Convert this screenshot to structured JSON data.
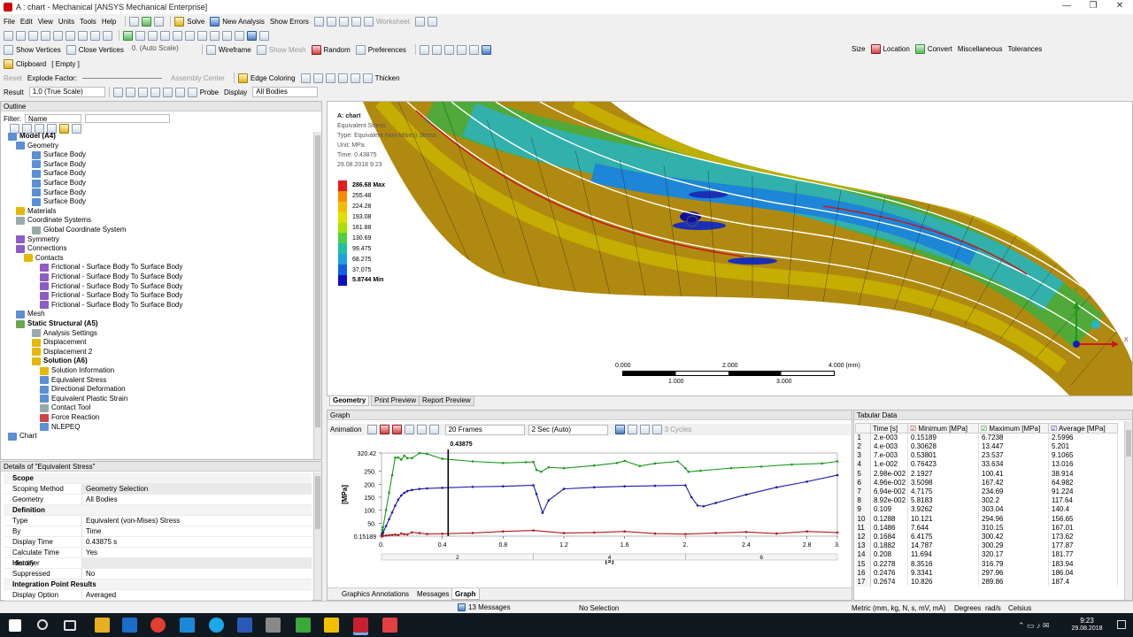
{
  "window": {
    "title": "A : chart - Mechanical [ANSYS Mechanical Enterprise]",
    "controls": [
      "—",
      "❐",
      "✕"
    ]
  },
  "menubar": {
    "items": [
      "File",
      "Edit",
      "View",
      "Units",
      "Tools",
      "Help"
    ],
    "solve": "Solve",
    "new_analysis": "New Analysis",
    "show_errors": "Show Errors",
    "worksheet": "Worksheet"
  },
  "toolbar3": {
    "show_vertices": "Show Vertices",
    "close_vertices": "Close Vertices",
    "auto_scale": "0. (Auto Scale)",
    "wireframe": "Wireframe",
    "show_mesh": "Show Mesh",
    "random": "Random",
    "preferences": "Preferences",
    "size": "Size",
    "location": "Location",
    "convert": "Convert",
    "misc": "Miscellaneous",
    "tolerances": "Tolerances"
  },
  "toolbar4": {
    "clipboard": "Clipboard",
    "empty": "[ Empty ]"
  },
  "toolbar5": {
    "reset": "Reset",
    "explode_factor": "Explode Factor:",
    "assembly_center": "Assembly Center",
    "edge_coloring": "Edge Coloring",
    "thicken": "Thicken"
  },
  "toolbar6": {
    "result": "Result",
    "scale": "1.0 (True Scale)",
    "probe": "Probe",
    "display": "Display",
    "all_bodies": "All Bodies"
  },
  "outline": {
    "title": "Outline",
    "filter_label": "Filter:",
    "filter_value": "Name",
    "tree": [
      {
        "label": "Model (A4)",
        "bold": true,
        "icon": "model-icon"
      },
      {
        "label": "Geometry",
        "icon": "geometry-icon"
      },
      {
        "label": "Surface Body",
        "icon": "surface-body-icon"
      },
      {
        "label": "Surface Body",
        "icon": "surface-body-icon"
      },
      {
        "label": "Surface Body",
        "icon": "surface-body-icon"
      },
      {
        "label": "Surface Body",
        "icon": "surface-body-icon"
      },
      {
        "label": "Surface Body",
        "icon": "surface-body-icon"
      },
      {
        "label": "Surface Body",
        "icon": "surface-body-icon"
      },
      {
        "label": "Materials",
        "icon": "materials-icon"
      },
      {
        "label": "Coordinate Systems",
        "icon": "coordinate-icon"
      },
      {
        "label": "Global Coordinate System",
        "icon": "coordinate-icon"
      },
      {
        "label": "Symmetry",
        "icon": "symmetry-icon"
      },
      {
        "label": "Connections",
        "icon": "connections-icon"
      },
      {
        "label": "Contacts",
        "icon": "contacts-icon"
      },
      {
        "label": "Frictional - Surface Body To Surface Body",
        "icon": "contact-icon"
      },
      {
        "label": "Frictional - Surface Body To Surface Body",
        "icon": "contact-icon"
      },
      {
        "label": "Frictional - Surface Body To Surface Body",
        "icon": "contact-icon"
      },
      {
        "label": "Frictional - Surface Body To Surface Body",
        "icon": "contact-icon"
      },
      {
        "label": "Frictional - Surface Body To Surface Body",
        "icon": "contact-icon"
      },
      {
        "label": "Mesh",
        "icon": "mesh-icon"
      },
      {
        "label": "Static Structural (A5)",
        "bold": true,
        "icon": "static-structural-icon"
      },
      {
        "label": "Analysis Settings",
        "icon": "analysis-settings-icon"
      },
      {
        "label": "Displacement",
        "icon": "displacement-icon"
      },
      {
        "label": "Displacement 2",
        "icon": "displacement-icon"
      },
      {
        "label": "Solution (A6)",
        "bold": true,
        "icon": "solution-icon"
      },
      {
        "label": "Solution Information",
        "icon": "solution-info-icon"
      },
      {
        "label": "Equivalent Stress",
        "icon": "result-icon"
      },
      {
        "label": "Directional Deformation",
        "icon": "result-icon"
      },
      {
        "label": "Equivalent Plastic Strain",
        "icon": "result-icon"
      },
      {
        "label": "Contact Tool",
        "icon": "contact-tool-icon"
      },
      {
        "label": "Force Reaction",
        "icon": "probe-icon"
      },
      {
        "label": "NLEPEQ",
        "icon": "result-icon"
      },
      {
        "label": "Chart",
        "icon": "chart-icon"
      }
    ]
  },
  "details": {
    "title": "Details of \"Equivalent Stress\"",
    "rows": [
      {
        "section": "Scope"
      },
      {
        "k": "Scoping Method",
        "v": "Geometry Selection",
        "gray": true
      },
      {
        "k": "Geometry",
        "v": "All Bodies"
      },
      {
        "section": "Definition"
      },
      {
        "k": "Type",
        "v": "Equivalent (von-Mises) Stress"
      },
      {
        "k": "By",
        "v": "Time"
      },
      {
        "k": "Display Time",
        "v": "0.43875 s"
      },
      {
        "k": "Calculate Time History",
        "v": "Yes"
      },
      {
        "k": "Identifier",
        "v": "",
        "gray": true
      },
      {
        "k": "Suppressed",
        "v": "No"
      },
      {
        "section": "Integration Point Results"
      },
      {
        "k": "Display Option",
        "v": "Averaged"
      }
    ]
  },
  "viewport": {
    "label": {
      "name": "A: chart",
      "result": "Equivalent Stress",
      "type": "Type: Equivalent (von-Mises) Stress",
      "unit": "Unit: MPa",
      "time": "Time: 0.43875",
      "date": "29.08.2018 9:23"
    },
    "legend": [
      {
        "v": "286.68 Max",
        "c": "#e51c1c",
        "bold": true
      },
      {
        "v": "255.48",
        "c": "#ff8c00"
      },
      {
        "v": "224.28",
        "c": "#f0c000"
      },
      {
        "v": "193.08",
        "c": "#e0e000"
      },
      {
        "v": "161.88",
        "c": "#a8e000"
      },
      {
        "v": "130.69",
        "c": "#50d040"
      },
      {
        "v": "99.475",
        "c": "#20c0a0"
      },
      {
        "v": "68.275",
        "c": "#20a0e0"
      },
      {
        "v": "37.075",
        "c": "#1060e0"
      },
      {
        "v": "5.8744 Min",
        "c": "#1010c0",
        "bold": true
      }
    ],
    "scalebar": {
      "top": [
        "0.000",
        "2.000",
        "4.000 (mm)"
      ],
      "bottom": [
        "1.000",
        "3.000"
      ]
    },
    "triad": {
      "x": "X",
      "y": "Y"
    },
    "tabs": [
      "Geometry",
      "Print Preview",
      "Report Preview"
    ]
  },
  "graph": {
    "title": "Graph",
    "animation": "Animation",
    "frames": "20 Frames",
    "speed": "2 Sec (Auto)",
    "cycles": "3 Cycles",
    "marker_label": "0.43875",
    "tabs": [
      "Graphics Annotations",
      "Messages",
      "Graph"
    ]
  },
  "chart_data": {
    "type": "line",
    "xlabel": "[s]",
    "ylabel": "[MPa]",
    "xlim": [
      0,
      3
    ],
    "ylim": [
      0,
      320.42
    ],
    "x_ticks": [
      "0.",
      "0.4",
      "0.8",
      "1.2",
      "1.6",
      "2.",
      "2.4",
      "2.8",
      "3."
    ],
    "y_ticks": [
      "320.42",
      "250.",
      "200.",
      "150.",
      "100.",
      "50.",
      "0.15189"
    ],
    "step_ticks": [
      "2",
      "4",
      "6"
    ],
    "marker_time": 0.43875,
    "series": [
      {
        "name": "Maximum [MPa]",
        "color": "#1a9a1a",
        "x": [
          0.002,
          0.004,
          0.007,
          0.01,
          0.03,
          0.05,
          0.07,
          0.09,
          0.11,
          0.13,
          0.15,
          0.17,
          0.2,
          0.25,
          0.3,
          0.4,
          0.6,
          0.8,
          0.95,
          1.0,
          1.02,
          1.05,
          1.1,
          1.2,
          1.4,
          1.55,
          1.6,
          1.7,
          1.8,
          1.95,
          2.0,
          2.02,
          2.1,
          2.3,
          2.5,
          2.7,
          2.9,
          3.0
        ],
        "y": [
          6.72,
          13.45,
          23.54,
          33.63,
          100.41,
          167.42,
          234.69,
          302.2,
          303.04,
          294.96,
          310.15,
          300.42,
          300.29,
          320.17,
          316.79,
          297.96,
          288,
          282,
          285,
          286,
          255,
          248,
          265,
          262,
          272,
          282,
          290,
          270,
          280,
          288,
          262,
          248,
          252,
          262,
          268,
          276,
          280,
          288
        ]
      },
      {
        "name": "Average [MPa]",
        "color": "#1a1aa8",
        "x": [
          0.002,
          0.004,
          0.007,
          0.01,
          0.03,
          0.05,
          0.07,
          0.09,
          0.11,
          0.13,
          0.15,
          0.17,
          0.2,
          0.25,
          0.3,
          0.4,
          0.6,
          0.8,
          1.0,
          1.02,
          1.06,
          1.1,
          1.2,
          1.4,
          1.6,
          1.8,
          2.0,
          2.04,
          2.08,
          2.12,
          2.2,
          2.4,
          2.6,
          2.8,
          3.0
        ],
        "y": [
          2.6,
          5.2,
          9.11,
          13.02,
          38.91,
          64.98,
          91.22,
          117.64,
          140.4,
          156.65,
          167.01,
          173.62,
          177.87,
          181.77,
          183.94,
          186.04,
          190,
          192,
          196,
          162,
          90,
          138,
          182,
          188,
          192,
          194,
          196,
          150,
          118,
          115,
          128,
          160,
          188,
          210,
          235
        ]
      },
      {
        "name": "Minimum [MPa]",
        "color": "#b01a1a",
        "x": [
          0.002,
          0.004,
          0.007,
          0.01,
          0.03,
          0.05,
          0.07,
          0.09,
          0.11,
          0.13,
          0.15,
          0.17,
          0.2,
          0.25,
          0.3,
          0.4,
          0.6,
          0.8,
          1.0,
          1.2,
          1.4,
          1.6,
          1.8,
          2.0,
          2.2,
          2.4,
          2.6,
          2.8,
          3.0
        ],
        "y": [
          0.15,
          0.31,
          0.54,
          0.76,
          2.19,
          3.51,
          4.72,
          5.82,
          3.93,
          10.12,
          7.64,
          6.42,
          14.79,
          11.69,
          8.35,
          9.33,
          12,
          18,
          22,
          12,
          14,
          18,
          10,
          8,
          12,
          16,
          10,
          18,
          14
        ]
      }
    ]
  },
  "tabular": {
    "title": "Tabular Data",
    "columns": [
      "Time [s]",
      "Minimum [MPa]",
      "Maximum [MPa]",
      "Average [MPa]"
    ],
    "rows": [
      [
        "1",
        "2.e-003",
        "0.15189",
        "6.7238",
        "2.5996"
      ],
      [
        "2",
        "4.e-003",
        "0.30628",
        "13.447",
        "5.201"
      ],
      [
        "3",
        "7.e-003",
        "0.53801",
        "23.537",
        "9.1065"
      ],
      [
        "4",
        "1.e-002",
        "0.76423",
        "33.634",
        "13.016"
      ],
      [
        "5",
        "2.98e-002",
        "2.1927",
        "100.41",
        "38.914"
      ],
      [
        "6",
        "4.96e-002",
        "3.5098",
        "167.42",
        "64.982"
      ],
      [
        "7",
        "6.94e-002",
        "4.7175",
        "234.69",
        "91.224"
      ],
      [
        "8",
        "8.92e-002",
        "5.8183",
        "302.2",
        "117.64"
      ],
      [
        "9",
        "0.109",
        "3.9262",
        "303.04",
        "140.4"
      ],
      [
        "10",
        "0.1288",
        "10.121",
        "294.96",
        "156.65"
      ],
      [
        "11",
        "0.1486",
        "7.644",
        "310.15",
        "167.01"
      ],
      [
        "12",
        "0.1684",
        "6.4175",
        "300.42",
        "173.62"
      ],
      [
        "13",
        "0.1882",
        "14.787",
        "300.29",
        "177.87"
      ],
      [
        "14",
        "0.208",
        "11.694",
        "320.17",
        "181.77"
      ],
      [
        "15",
        "0.2278",
        "8.3516",
        "316.79",
        "183.94"
      ],
      [
        "16",
        "0.2476",
        "9.3341",
        "297.96",
        "186.04"
      ],
      [
        "17",
        "0.2674",
        "10.826",
        "289.86",
        "187.4"
      ]
    ]
  },
  "statusbar": {
    "messages": "13 Messages",
    "selection": "No Selection",
    "units": "Metric (mm, kg, N, s, mV, mA)",
    "degrees": "Degrees",
    "rads": "rad/s",
    "celsius": "Celsius"
  },
  "taskbar": {
    "time": "9:23",
    "date": "29.08.2018"
  }
}
